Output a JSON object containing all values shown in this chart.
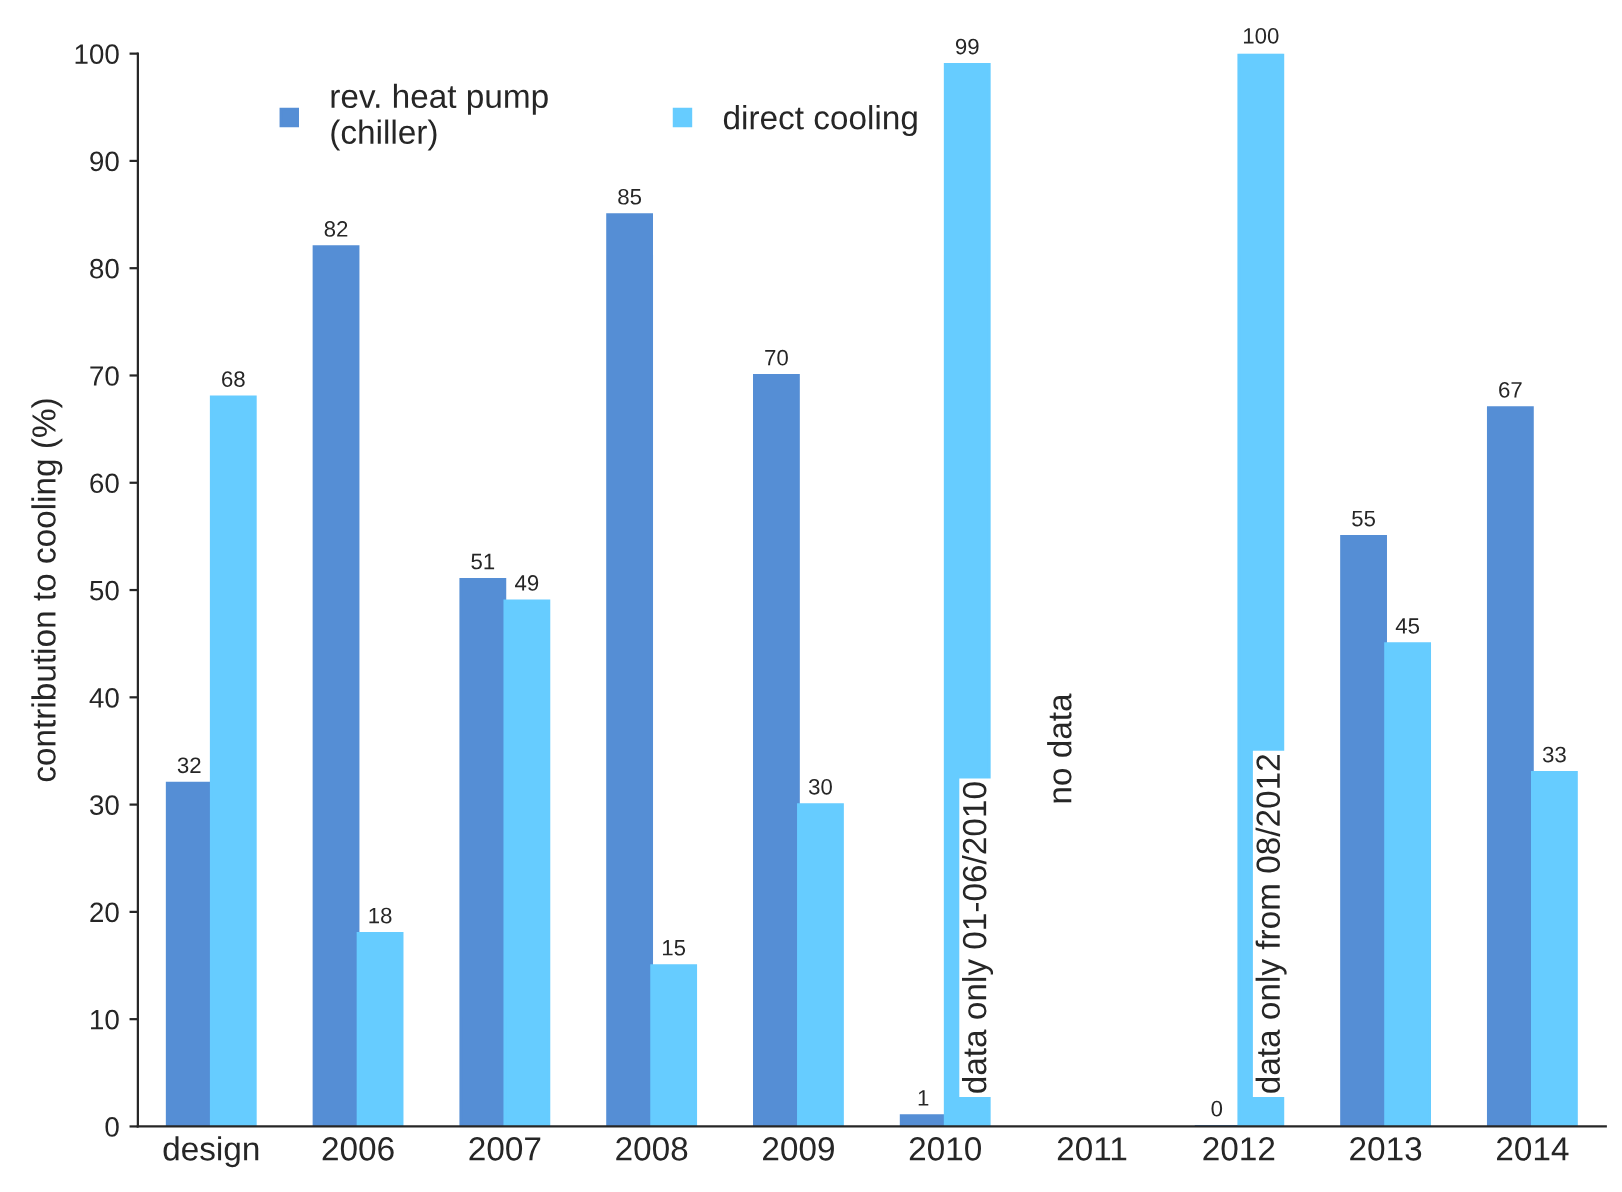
{
  "chart_data": {
    "type": "bar",
    "ylabel": "contribution to cooling (%)",
    "categories": [
      "design",
      "2006",
      "2007",
      "2008",
      "2009",
      "2010",
      "2011",
      "2012",
      "2013",
      "2014"
    ],
    "series": [
      {
        "name": "rev. heat pump\n(chiller)",
        "color": "#558ed5",
        "values": [
          32,
          82,
          51,
          85,
          70,
          1,
          null,
          0,
          55,
          67
        ]
      },
      {
        "name": "direct cooling",
        "color": "#66ccff",
        "values": [
          68,
          18,
          49,
          15,
          30,
          99,
          null,
          100,
          45,
          33
        ]
      }
    ],
    "ylim": [
      0,
      100
    ],
    "yticks": [
      0,
      10,
      20,
      30,
      40,
      50,
      60,
      70,
      80,
      90,
      100
    ],
    "data_labels": true,
    "legend": "top left",
    "grid": false,
    "annotations": [
      {
        "text": "data only 01-06/2010",
        "x": "2010",
        "y": 3
      },
      "no data",
      {
        "text": "data only from 08/2012",
        "x": "2012",
        "y": 3
      }
    ]
  }
}
